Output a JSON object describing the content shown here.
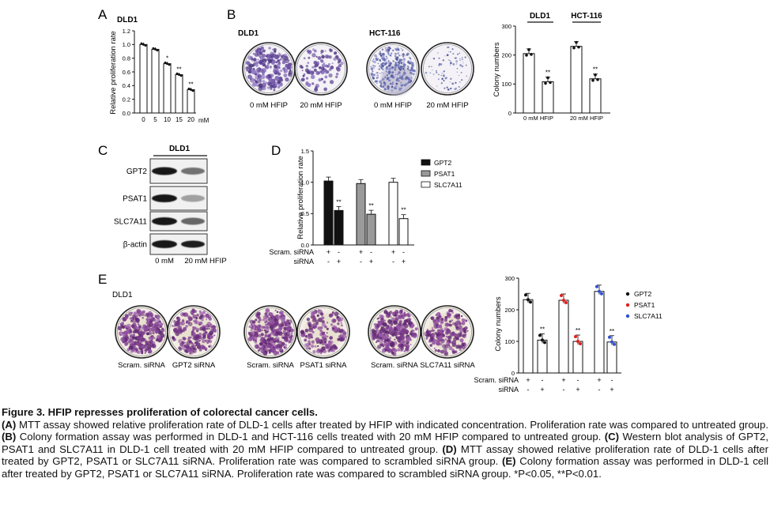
{
  "panels": {
    "A": {
      "letter": "A",
      "cell_line": "DLD1",
      "ylabel": "Relative proliferation rate",
      "yticks": [
        "0.0",
        "0.2",
        "0.4",
        "0.6",
        "0.8",
        "1.0",
        "1.2"
      ],
      "xunit": "mM"
    },
    "B": {
      "letter": "B",
      "dish_groups": [
        {
          "title": "DLD1",
          "labels": [
            "0 mM HFIP",
            "20 mM HFIP"
          ]
        },
        {
          "title": "HCT-116",
          "labels": [
            "0 mM HFIP",
            "20 mM HFIP"
          ]
        }
      ],
      "chart_groups": [
        "DLD1",
        "HCT-116"
      ],
      "ylabel": "Colony numbers",
      "yticks": [
        "0",
        "100",
        "200",
        "300"
      ]
    },
    "C": {
      "letter": "C",
      "cell_line": "DLD1",
      "bands": [
        "GPT2",
        "PSAT1",
        "SLC7A11",
        "β-actin"
      ],
      "lane_labels": [
        "0 mM",
        "20 mM HFIP"
      ]
    },
    "D": {
      "letter": "D",
      "ylabel": "Relative proliferation rate",
      "yticks": [
        "0.0",
        "0.5",
        "1.0",
        "1.5"
      ],
      "row_labels": [
        "Scram. siRNA",
        "siRNA"
      ]
    },
    "E": {
      "letter": "E",
      "cell_line": "DLD1",
      "dish_labels": [
        "Scram. siRNA",
        "GPT2 siRNA",
        "Scram. siRNA",
        "PSAT1 siRNA",
        "Scram. siRNA",
        "SLC7A11 siRNA"
      ],
      "ylabel": "Colony numbers",
      "yticks": [
        "0",
        "100",
        "200",
        "300"
      ],
      "row_labels": [
        "Scram. siRNA",
        "siRNA"
      ]
    }
  },
  "chart_data": [
    {
      "panel": "A",
      "type": "bar",
      "categories": [
        "0",
        "5",
        "10",
        "15",
        "20"
      ],
      "values": [
        1.0,
        0.93,
        0.72,
        0.56,
        0.34
      ],
      "significance": [
        "",
        "",
        "*",
        "**",
        "**"
      ],
      "xlabel": "mM",
      "ylabel": "Relative proliferation rate",
      "ylim": [
        0,
        1.2
      ],
      "colors": [
        "#ffffff"
      ]
    },
    {
      "panel": "B",
      "type": "bar",
      "groups": [
        "DLD1",
        "HCT-116"
      ],
      "categories": [
        "0 mM HFIP",
        "20 mM HFIP",
        "0 mM HFIP",
        "20 mM HFIP"
      ],
      "values": [
        205,
        108,
        230,
        118
      ],
      "significance": [
        "",
        "**",
        "",
        "**"
      ],
      "ylabel": "Colony numbers",
      "ylim": [
        0,
        300
      ]
    },
    {
      "panel": "D",
      "type": "bar",
      "series": [
        {
          "name": "GPT2",
          "values": [
            1.02,
            0.55
          ],
          "color": "#111111"
        },
        {
          "name": "PSAT1",
          "values": [
            0.98,
            0.49
          ],
          "color": "#9a9a9a"
        },
        {
          "name": "SLC7A11",
          "values": [
            1.0,
            0.42
          ],
          "color": "#ffffff"
        }
      ],
      "categories": [
        "Scram. siRNA",
        "siRNA"
      ],
      "significance": [
        "",
        "**",
        "",
        "**",
        "",
        "**"
      ],
      "ylabel": "Relative proliferation rate",
      "ylim": [
        0,
        1.5
      ],
      "legend": "top-right"
    },
    {
      "panel": "E",
      "type": "scatter",
      "series": [
        {
          "name": "GPT2",
          "values": [
            232,
            104
          ],
          "color": "#111111"
        },
        {
          "name": "PSAT1",
          "values": [
            230,
            100
          ],
          "color": "#e02020"
        },
        {
          "name": "SLC7A11",
          "values": [
            258,
            98
          ],
          "color": "#3050d0"
        }
      ],
      "categories": [
        "Scram. siRNA",
        "siRNA"
      ],
      "significance": [
        "",
        "**",
        "",
        "**",
        "",
        "**"
      ],
      "ylabel": "Colony numbers",
      "ylim": [
        0,
        300
      ],
      "legend": "right"
    }
  ],
  "caption": {
    "title": "Figure 3. HFIP represses proliferation of colorectal cancer cells.",
    "segments": [
      {
        "b": "(A)",
        "t": " MTT assay showed relative proliferation rate of DLD-1 cells after treated by HFIP with indicated concentration. Proliferation rate was compared to untreated group. "
      },
      {
        "b": "(B)",
        "t": " Colony formation assay was performed in DLD-1 and HCT-116 cells treated with 20 mM HFIP compared to untreated group. "
      },
      {
        "b": "(C)",
        "t": " Western blot analysis of GPT2, PSAT1 and SLC7A11 in DLD-1 cell treated with 20 mM HFIP compared to untreated group. "
      },
      {
        "b": "(D)",
        "t": " MTT assay showed relative proliferation rate of DLD-1 cells after treated by GPT2, PSAT1 or SLC7A11 siRNA. Proliferation rate was compared to scrambled siRNA group. "
      },
      {
        "b": "(E)",
        "t": " Colony formation assay was performed in DLD-1 cell after treated by GPT2, PSAT1 or SLC7A11 siRNA. Proliferation rate was compared to scrambled siRNA group. *P<0.05, **P<0.01."
      }
    ]
  }
}
